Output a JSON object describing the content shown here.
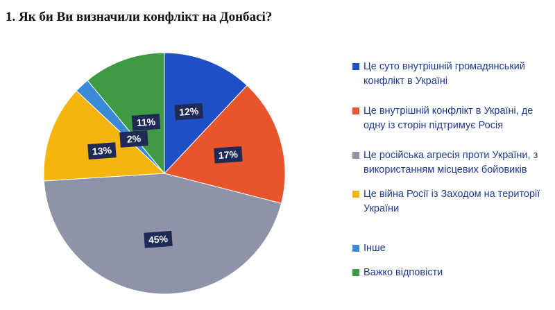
{
  "chart_data": {
    "type": "pie",
    "title": "1.  Як би Ви визначили конфлікт на Донбасі?",
    "categories": [
      "Це суто внутрішній громадянський конфлікт в Україні",
      "Це внутрішній конфлікт в Україні, де одну із сторін підтримує Росія",
      "Це російська агресія проти України, з використанням місцевих бойовиків",
      "Це війна Росії із Заходом на території України",
      "Інше",
      "Важко відповісти"
    ],
    "values": [
      12,
      17,
      45,
      13,
      2,
      11
    ],
    "value_labels": [
      "12%",
      "17%",
      "45%",
      "13%",
      "2%",
      "11%"
    ],
    "colors": [
      "#1f4fc4",
      "#e8552c",
      "#8e93a8",
      "#f6b40e",
      "#3b8ad8",
      "#3f9a46"
    ]
  }
}
